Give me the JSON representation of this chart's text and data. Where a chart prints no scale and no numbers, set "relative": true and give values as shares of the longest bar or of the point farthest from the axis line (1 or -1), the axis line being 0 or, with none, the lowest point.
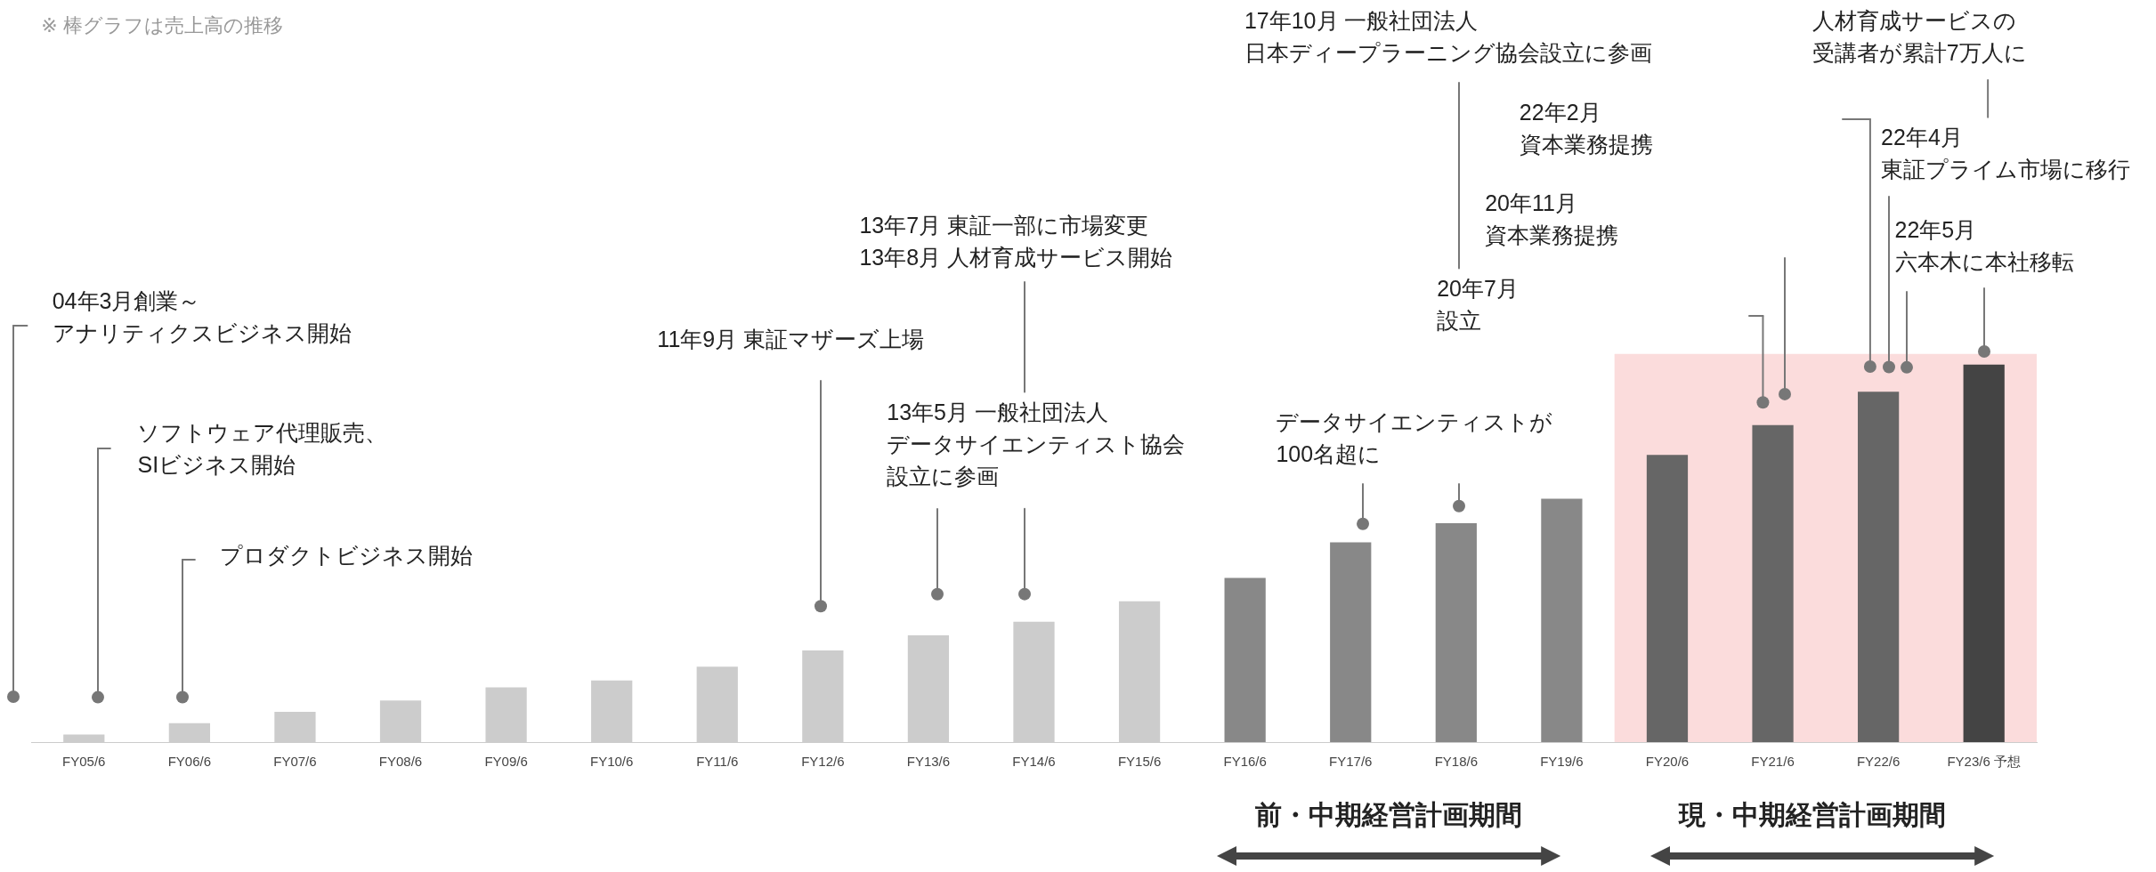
{
  "chart_data": {
    "type": "bar",
    "relative": true,
    "legend": false,
    "grid": false,
    "tick_labels": "x",
    "categories": [
      "FY05/6",
      "FY06/6",
      "FY07/6",
      "FY08/6",
      "FY09/6",
      "FY10/6",
      "FY11/6",
      "FY12/6",
      "FY13/6",
      "FY14/6",
      "FY15/6",
      "FY16/6",
      "FY17/6",
      "FY18/6",
      "FY19/6",
      "FY20/6",
      "FY21/6",
      "FY22/6",
      "FY23/6 予想"
    ],
    "values": [
      0.02,
      0.05,
      0.08,
      0.11,
      0.145,
      0.163,
      0.2,
      0.243,
      0.283,
      0.319,
      0.373,
      0.435,
      0.529,
      0.58,
      0.645,
      0.761,
      0.84,
      0.928,
      1
    ],
    "colors": [
      "#cccccc",
      "#cccccc",
      "#cccccc",
      "#cccccc",
      "#cccccc",
      "#cccccc",
      "#cccccc",
      "#cccccc",
      "#cccccc",
      "#cccccc",
      "#cccccc",
      "#888888",
      "#888888",
      "#888888",
      "#888888",
      "#666666",
      "#666666",
      "#666666",
      "#444444"
    ],
    "bands": [
      {
        "axis": "x",
        "from": "FY20/6",
        "to": "FY23/6 予想",
        "color": "#fbdcdc"
      }
    ],
    "annotations": [
      "※ 棒グラフは売上高の推移",
      "04年3月創業～アナリティクスビジネス開始",
      "ソフトウェア代理販売、SIビジネス開始",
      "プロダクトビジネス開始",
      "11年9月 東証マザーズ上場",
      "13年5月 一般社団法人データサイエンティスト協会設立に参画",
      "13年7月 東証一部に市場変更\n13年8月 人材育成サービス開始",
      "データサイエンティストが\n100名超に",
      "17年10月 一般社団法人日本ディープラーニング協会設立に参画",
      "20年7月設立",
      "20年11月資本業務提携",
      "22年2月資本業務提携",
      "22年4月東証プライム市場に移行",
      "人材育成サービスの受講者が累計7万人に",
      "22年5月六本木に本社移転",
      "前・中期経営計画期間",
      "現・中期経営計画期間"
    ]
  }
}
